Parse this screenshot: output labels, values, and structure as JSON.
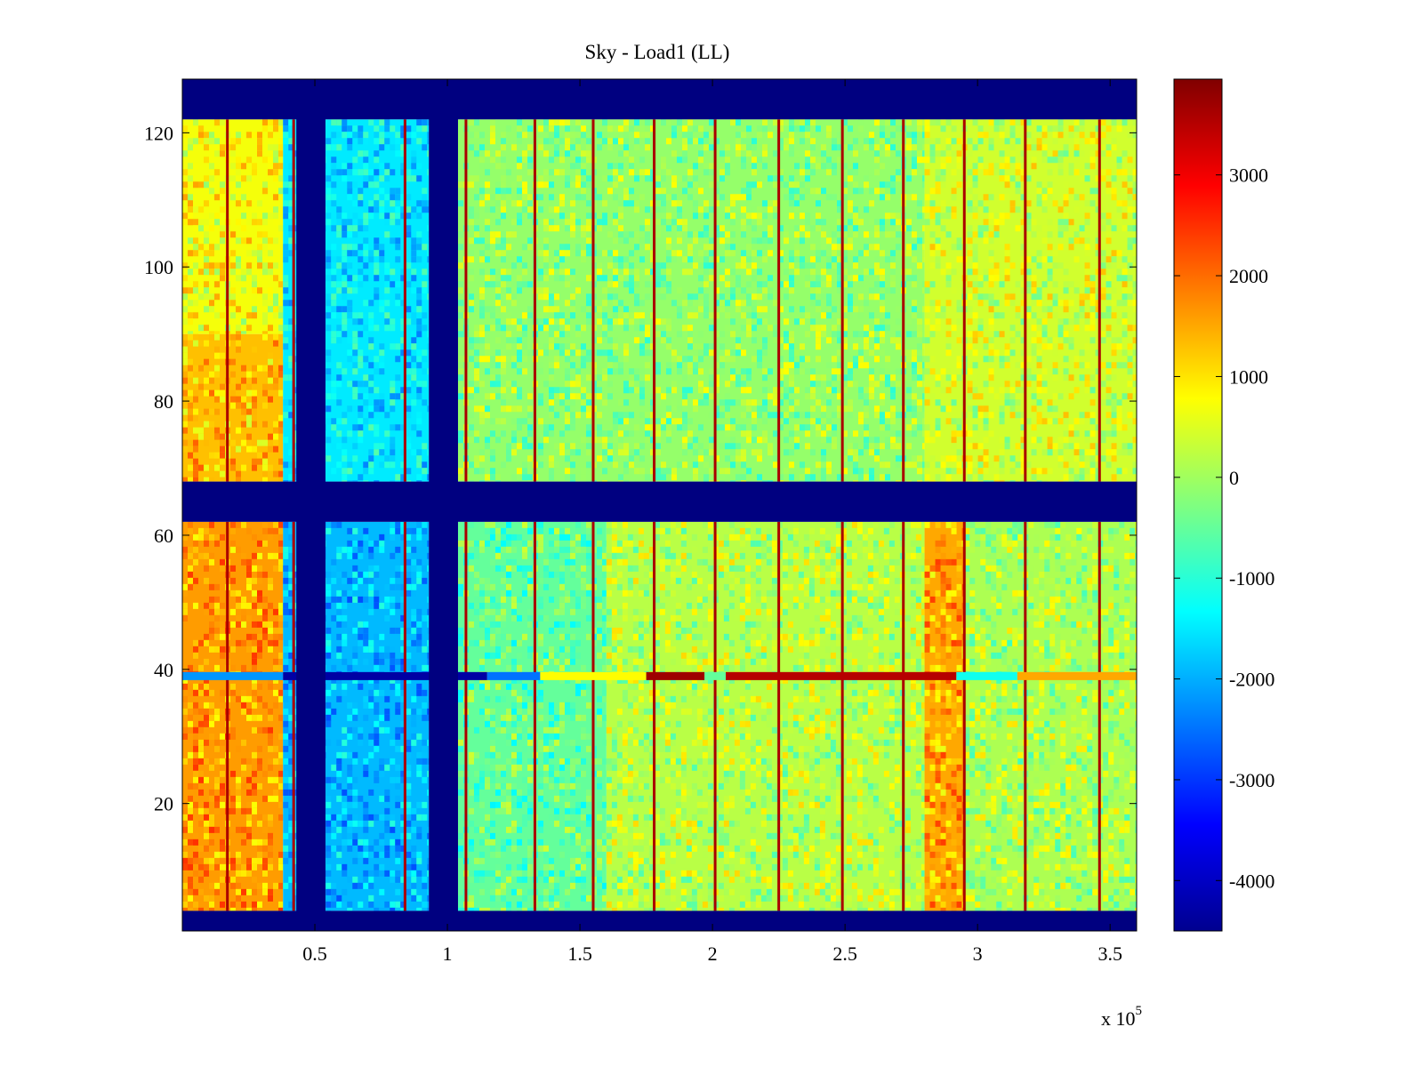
{
  "chart_data": {
    "type": "heatmap",
    "title": "Sky - Load1 (LL)",
    "xlabel": "",
    "ylabel": "",
    "x_multiplier_label": "x 10",
    "x_multiplier_exponent": "5",
    "xlim": [
      0,
      3.6
    ],
    "ylim": [
      1,
      128
    ],
    "xticks": [
      0.5,
      1,
      1.5,
      2,
      2.5,
      3,
      3.5
    ],
    "xtick_labels": [
      "0.5",
      "1",
      "1.5",
      "2",
      "2.5",
      "3",
      "3.5"
    ],
    "yticks": [
      20,
      40,
      60,
      80,
      100,
      120
    ],
    "ytick_labels": [
      "20",
      "40",
      "60",
      "80",
      "100",
      "120"
    ],
    "colorbar": {
      "colormap": "jet",
      "clim": [
        -4500,
        3950
      ],
      "ticks": [
        -4000,
        -3000,
        -2000,
        -1000,
        0,
        1000,
        2000,
        3000
      ],
      "tick_labels": [
        "-4000",
        "-3000",
        "-2000",
        "-1000",
        "0",
        "1000",
        "2000",
        "3000"
      ]
    },
    "flagged_rows": [
      [
        1,
        4
      ],
      [
        62,
        68
      ],
      [
        122,
        128
      ]
    ],
    "flagged_columns": [
      [
        0.43,
        0.54
      ],
      [
        0.93,
        1.04
      ]
    ],
    "flagged_column_row_ranges": [
      [
        4,
        62
      ],
      [
        68,
        122
      ]
    ],
    "bright_vertical_lines_x": [
      0.17,
      0.42,
      0.84,
      1.07,
      1.33,
      1.55,
      1.78,
      2.01,
      2.25,
      2.49,
      2.72,
      2.95,
      3.18,
      3.46
    ],
    "anomalous_row": {
      "y": 39,
      "segments": [
        {
          "x": [
            0.0,
            0.38
          ],
          "value": -2200
        },
        {
          "x": [
            0.38,
            1.15
          ],
          "value": -4200
        },
        {
          "x": [
            1.15,
            1.35
          ],
          "value": -2500
        },
        {
          "x": [
            1.35,
            1.75
          ],
          "value": 800
        },
        {
          "x": [
            1.75,
            1.97
          ],
          "value": 3700
        },
        {
          "x": [
            1.97,
            2.05
          ],
          "value": -500
        },
        {
          "x": [
            2.05,
            2.92
          ],
          "value": 3500
        },
        {
          "x": [
            2.92,
            3.15
          ],
          "value": -1200
        },
        {
          "x": [
            3.15,
            3.6
          ],
          "value": 1500
        }
      ]
    },
    "regions": [
      {
        "x": [
          0.0,
          0.38
        ],
        "y": [
          4,
          62
        ],
        "value": 1600
      },
      {
        "x": [
          0.0,
          0.38
        ],
        "y": [
          68,
          90
        ],
        "value": 1300
      },
      {
        "x": [
          0.0,
          0.38
        ],
        "y": [
          90,
          122
        ],
        "value": 700
      },
      {
        "x": [
          0.38,
          0.93
        ],
        "y": [
          4,
          62
        ],
        "value": -1900
      },
      {
        "x": [
          0.38,
          0.93
        ],
        "y": [
          68,
          122
        ],
        "value": -1500
      },
      {
        "x": [
          1.04,
          1.6
        ],
        "y": [
          4,
          62
        ],
        "value": -500
      },
      {
        "x": [
          1.04,
          2.8
        ],
        "y": [
          68,
          122
        ],
        "value": -100
      },
      {
        "x": [
          1.6,
          2.8
        ],
        "y": [
          4,
          62
        ],
        "value": 200
      },
      {
        "x": [
          2.8,
          2.95
        ],
        "y": [
          4,
          62
        ],
        "value": 1500
      },
      {
        "x": [
          2.95,
          3.6
        ],
        "y": [
          4,
          62
        ],
        "value": 100
      },
      {
        "x": [
          2.8,
          3.6
        ],
        "y": [
          68,
          122
        ],
        "value": 400
      }
    ]
  }
}
